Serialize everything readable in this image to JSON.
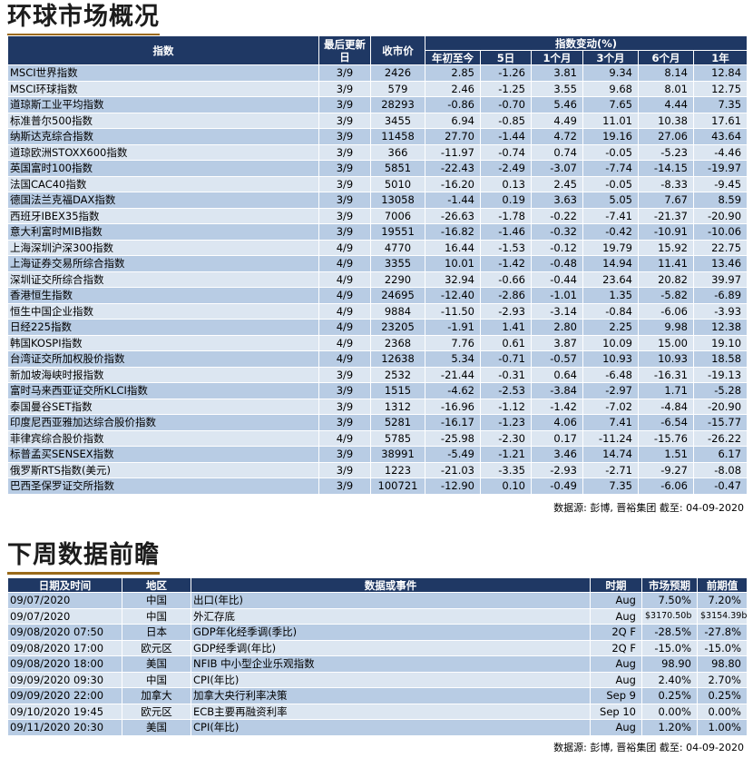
{
  "section1": {
    "title": "环球市场概况",
    "headers": {
      "index": "指数",
      "updated": "最后更新日",
      "close": "收市价",
      "change_group": "指数变动(%)",
      "periods": [
        "年初至今",
        "5日",
        "1个月",
        "3个月",
        "6个月",
        "1年"
      ]
    },
    "rows": [
      {
        "name": "MSCI世界指数",
        "date": "3/9",
        "close": "2426",
        "ytd": "2.85",
        "d5": "-1.26",
        "m1": "3.81",
        "m3": "9.34",
        "m6": "8.14",
        "y1": "12.84"
      },
      {
        "name": "MSCI环球指数",
        "date": "3/9",
        "close": "579",
        "ytd": "2.46",
        "d5": "-1.25",
        "m1": "3.55",
        "m3": "9.68",
        "m6": "8.01",
        "y1": "12.75"
      },
      {
        "name": "道琼斯工业平均指数",
        "date": "3/9",
        "close": "28293",
        "ytd": "-0.86",
        "d5": "-0.70",
        "m1": "5.46",
        "m3": "7.65",
        "m6": "4.44",
        "y1": "7.35"
      },
      {
        "name": "标准普尔500指数",
        "date": "3/9",
        "close": "3455",
        "ytd": "6.94",
        "d5": "-0.85",
        "m1": "4.49",
        "m3": "11.01",
        "m6": "10.38",
        "y1": "17.61"
      },
      {
        "name": "纳斯达克综合指数",
        "date": "3/9",
        "close": "11458",
        "ytd": "27.70",
        "d5": "-1.44",
        "m1": "4.72",
        "m3": "19.16",
        "m6": "27.06",
        "y1": "43.64"
      },
      {
        "name": "道琼欧洲STOXX600指数",
        "date": "3/9",
        "close": "366",
        "ytd": "-11.97",
        "d5": "-0.74",
        "m1": "0.74",
        "m3": "-0.05",
        "m6": "-5.23",
        "y1": "-4.46"
      },
      {
        "name": "英国富时100指数",
        "date": "3/9",
        "close": "5851",
        "ytd": "-22.43",
        "d5": "-2.49",
        "m1": "-3.07",
        "m3": "-7.74",
        "m6": "-14.15",
        "y1": "-19.97"
      },
      {
        "name": "法国CAC40指数",
        "date": "3/9",
        "close": "5010",
        "ytd": "-16.20",
        "d5": "0.13",
        "m1": "2.45",
        "m3": "-0.05",
        "m6": "-8.33",
        "y1": "-9.45"
      },
      {
        "name": "德国法兰克福DAX指数",
        "date": "3/9",
        "close": "13058",
        "ytd": "-1.44",
        "d5": "0.19",
        "m1": "3.63",
        "m3": "5.05",
        "m6": "7.67",
        "y1": "8.59"
      },
      {
        "name": "西班牙IBEX35指数",
        "date": "3/9",
        "close": "7006",
        "ytd": "-26.63",
        "d5": "-1.78",
        "m1": "-0.22",
        "m3": "-7.41",
        "m6": "-21.37",
        "y1": "-20.90"
      },
      {
        "name": "意大利富时MIB指数",
        "date": "3/9",
        "close": "19551",
        "ytd": "-16.82",
        "d5": "-1.46",
        "m1": "-0.32",
        "m3": "-0.42",
        "m6": "-10.91",
        "y1": "-10.06"
      },
      {
        "name": "上海深圳沪深300指数",
        "date": "4/9",
        "close": "4770",
        "ytd": "16.44",
        "d5": "-1.53",
        "m1": "-0.12",
        "m3": "19.79",
        "m6": "15.92",
        "y1": "22.75"
      },
      {
        "name": "上海证券交易所综合指数",
        "date": "4/9",
        "close": "3355",
        "ytd": "10.01",
        "d5": "-1.42",
        "m1": "-0.48",
        "m3": "14.94",
        "m6": "11.41",
        "y1": "13.46"
      },
      {
        "name": "深圳证交所综合指数",
        "date": "4/9",
        "close": "2290",
        "ytd": "32.94",
        "d5": "-0.66",
        "m1": "-0.44",
        "m3": "23.64",
        "m6": "20.82",
        "y1": "39.97"
      },
      {
        "name": "香港恒生指数",
        "date": "4/9",
        "close": "24695",
        "ytd": "-12.40",
        "d5": "-2.86",
        "m1": "-1.01",
        "m3": "1.35",
        "m6": "-5.82",
        "y1": "-6.89"
      },
      {
        "name": "恒生中国企业指数",
        "date": "4/9",
        "close": "9884",
        "ytd": "-11.50",
        "d5": "-2.93",
        "m1": "-3.14",
        "m3": "-0.84",
        "m6": "-6.06",
        "y1": "-3.93"
      },
      {
        "name": "日经225指数",
        "date": "4/9",
        "close": "23205",
        "ytd": "-1.91",
        "d5": "1.41",
        "m1": "2.80",
        "m3": "2.25",
        "m6": "9.98",
        "y1": "12.38"
      },
      {
        "name": "韩国KOSPI指数",
        "date": "4/9",
        "close": "2368",
        "ytd": "7.76",
        "d5": "0.61",
        "m1": "3.87",
        "m3": "10.09",
        "m6": "15.00",
        "y1": "19.10"
      },
      {
        "name": "台湾证交所加权股价指数",
        "date": "4/9",
        "close": "12638",
        "ytd": "5.34",
        "d5": "-0.71",
        "m1": "-0.57",
        "m3": "10.93",
        "m6": "10.93",
        "y1": "18.58"
      },
      {
        "name": "新加坡海峡时报指数",
        "date": "3/9",
        "close": "2532",
        "ytd": "-21.44",
        "d5": "-0.31",
        "m1": "0.64",
        "m3": "-6.48",
        "m6": "-16.31",
        "y1": "-19.13"
      },
      {
        "name": "富时马来西亚证交所KLCI指数",
        "date": "3/9",
        "close": "1515",
        "ytd": "-4.62",
        "d5": "-2.53",
        "m1": "-3.84",
        "m3": "-2.97",
        "m6": "1.71",
        "y1": "-5.28"
      },
      {
        "name": "泰国曼谷SET指数",
        "date": "3/9",
        "close": "1312",
        "ytd": "-16.96",
        "d5": "-1.12",
        "m1": "-1.42",
        "m3": "-7.02",
        "m6": "-4.84",
        "y1": "-20.90"
      },
      {
        "name": "印度尼西亚雅加达综合股价指数",
        "date": "3/9",
        "close": "5281",
        "ytd": "-16.17",
        "d5": "-1.23",
        "m1": "4.06",
        "m3": "7.41",
        "m6": "-6.54",
        "y1": "-15.77"
      },
      {
        "name": "菲律宾综合股价指数",
        "date": "4/9",
        "close": "5785",
        "ytd": "-25.98",
        "d5": "-2.30",
        "m1": "0.17",
        "m3": "-11.24",
        "m6": "-15.76",
        "y1": "-26.22"
      },
      {
        "name": "标普孟买SENSEX指数",
        "date": "3/9",
        "close": "38991",
        "ytd": "-5.49",
        "d5": "-1.21",
        "m1": "3.46",
        "m3": "14.74",
        "m6": "1.51",
        "y1": "6.17"
      },
      {
        "name": "俄罗斯RTS指数(美元)",
        "date": "3/9",
        "close": "1223",
        "ytd": "-21.03",
        "d5": "-3.35",
        "m1": "-2.93",
        "m3": "-2.71",
        "m6": "-9.27",
        "y1": "-8.08"
      },
      {
        "name": "巴西圣保罗证交所指数",
        "date": "3/9",
        "close": "100721",
        "ytd": "-12.90",
        "d5": "0.10",
        "m1": "-0.49",
        "m3": "7.35",
        "m6": "-6.06",
        "y1": "-0.47"
      }
    ],
    "source": "数据源: 彭博, 晋裕集团 截至: 04-09-2020"
  },
  "section2": {
    "title": "下周数据前瞻",
    "headers": {
      "datetime": "日期及时间",
      "region": "地区",
      "event": "数据或事件",
      "period": "时期",
      "forecast": "市场预期",
      "previous": "前期值"
    },
    "rows": [
      {
        "datetime": "09/07/2020",
        "region": "中国",
        "event": "出口(年比)",
        "period": "Aug",
        "forecast": "7.50%",
        "previous": "7.20%"
      },
      {
        "datetime": "09/07/2020",
        "region": "中国",
        "event": "外汇存底",
        "period": "Aug",
        "forecast": "$3170.50b",
        "previous": "$3154.39b"
      },
      {
        "datetime": "09/08/2020 07:50",
        "region": "日本",
        "event": "GDP年化经季调(季比)",
        "period": "2Q F",
        "forecast": "-28.5%",
        "previous": "-27.8%"
      },
      {
        "datetime": "09/08/2020 17:00",
        "region": "欧元区",
        "event": "GDP经季调(年比)",
        "period": "2Q F",
        "forecast": "-15.0%",
        "previous": "-15.0%"
      },
      {
        "datetime": "09/08/2020 18:00",
        "region": "美国",
        "event": "NFIB 中小型企业乐观指数",
        "period": "Aug",
        "forecast": "98.90",
        "previous": "98.80"
      },
      {
        "datetime": "09/09/2020 09:30",
        "region": "中国",
        "event": "CPI(年比)",
        "period": "Aug",
        "forecast": "2.40%",
        "previous": "2.70%"
      },
      {
        "datetime": "09/09/2020 22:00",
        "region": "加拿大",
        "event": "加拿大央行利率决策",
        "period": "Sep 9",
        "forecast": "0.25%",
        "previous": "0.25%"
      },
      {
        "datetime": "09/10/2020 19:45",
        "region": "欧元区",
        "event": "ECB主要再融资利率",
        "period": "Sep 10",
        "forecast": "0.00%",
        "previous": "0.00%"
      },
      {
        "datetime": "09/11/2020 20:30",
        "region": "美国",
        "event": "CPI(年比)",
        "period": "Aug",
        "forecast": "1.20%",
        "previous": "1.00%"
      }
    ],
    "source": "数据源: 彭博, 晋裕集团 截至: 04-09-2020"
  }
}
